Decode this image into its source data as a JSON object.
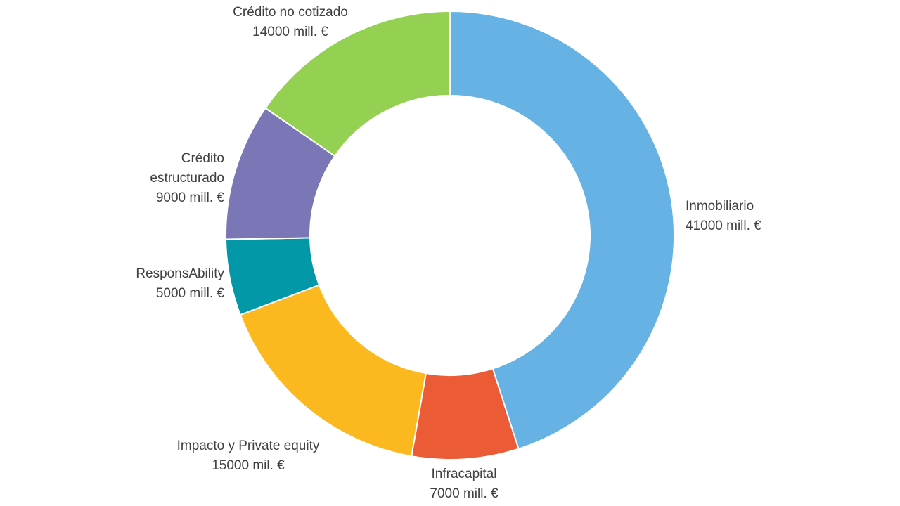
{
  "chart_data": {
    "type": "pie",
    "title": "",
    "unit": "mill. €",
    "slices": [
      {
        "name": "Inmobiliario",
        "value": 41000,
        "value_label": "41000 mill. €",
        "color": "#66B2E4",
        "label_lines": [
          "Inmobiliario",
          "41000 mill. €"
        ]
      },
      {
        "name": "Infracapital",
        "value": 7000,
        "value_label": "7000 mill. €",
        "color": "#EA5B36",
        "label_lines": [
          "Infracapital",
          "7000 mill. €"
        ]
      },
      {
        "name": "Impacto y Private equity",
        "value": 15000,
        "value_label": "15000 mil. €",
        "color": "#FBB81F",
        "label_lines": [
          "Impacto y Private equity",
          "15000 mil. €"
        ]
      },
      {
        "name": "ResponsAbility",
        "value": 5000,
        "value_label": "5000 mill. €",
        "color": "#0398A8",
        "label_lines": [
          "ResponsAbility",
          "5000 mill. €"
        ]
      },
      {
        "name": "Crédito estructurado",
        "value": 9000,
        "value_label": "9000 mill. €",
        "color": "#7B76B6",
        "label_lines": [
          "Crédito",
          "estructurado",
          "9000 mill. €"
        ]
      },
      {
        "name": "Crédito no cotizado",
        "value": 14000,
        "value_label": "14000 mill. €",
        "color": "#94D051",
        "label_lines": [
          "Crédito no cotizado",
          "14000 mill. €"
        ]
      }
    ],
    "donut": true,
    "start_angle": "12 o'clock",
    "direction": "clockwise",
    "legend": "none",
    "labels": "outside"
  }
}
